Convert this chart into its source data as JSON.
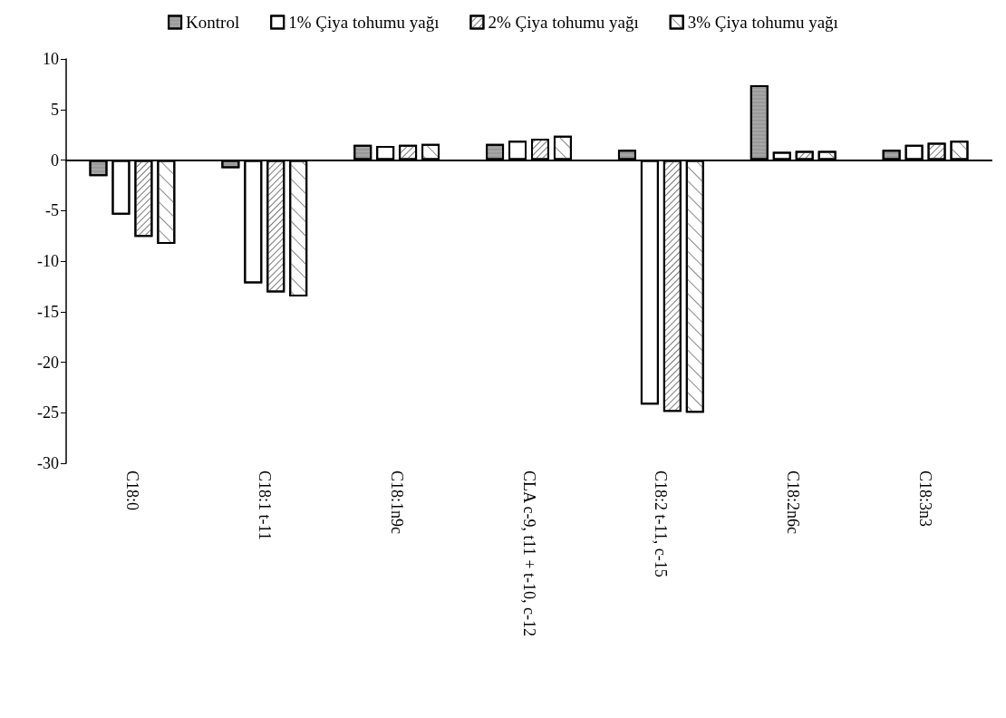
{
  "chart_data": {
    "type": "bar",
    "categories": [
      "C18:0",
      "C18:1 t-11",
      "C18:1n9c",
      "CLA c-9, t11 + t-10, c-12",
      "C18:2 t-11, c-15",
      "C18:2n6c",
      "C18:3n3"
    ],
    "series": [
      {
        "name": "Kontrol",
        "color": "#a6a6a6",
        "values": [
          -1.6,
          -0.8,
          1.5,
          1.6,
          1.0,
          7.4,
          1.0
        ]
      },
      {
        "name": "1% Çiya tohumu yağı",
        "color": "#ffffff",
        "values": [
          -5.4,
          -12.2,
          1.4,
          1.9,
          -24.2,
          0.8,
          1.5
        ]
      },
      {
        "name": "2% Çiya tohumu yağı",
        "color": "#ffffff",
        "values": [
          -7.6,
          -13.1,
          1.5,
          2.1,
          -24.9,
          0.9,
          1.7
        ]
      },
      {
        "name": "3% Çiya tohumu yağı",
        "color": "#ffffff",
        "values": [
          -8.3,
          -13.5,
          1.6,
          2.4,
          -25.0,
          0.9,
          1.9
        ]
      }
    ],
    "ylim": [
      -30,
      10
    ],
    "yticks": [
      -30,
      -25,
      -20,
      -15,
      -10,
      -5,
      0,
      5,
      10
    ],
    "legend": "top"
  }
}
